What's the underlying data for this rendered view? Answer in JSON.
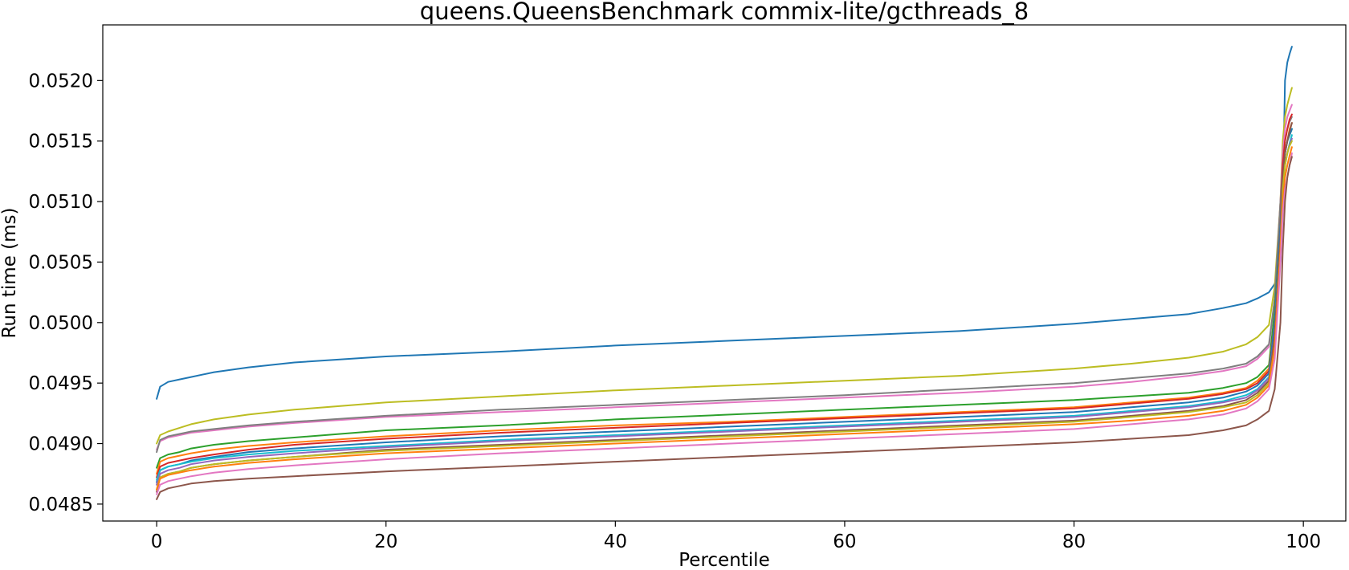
{
  "chart_data": {
    "type": "line",
    "title": "queens.QueensBenchmark commix-lite/gcthreads_8",
    "xlabel": "Percentile",
    "ylabel": "Run time (ms)",
    "xlim": [
      -4.7,
      103.7
    ],
    "ylim": [
      0.04836,
      0.05246
    ],
    "xticks": [
      0,
      20,
      40,
      60,
      80,
      100
    ],
    "yticks": [
      0.0485,
      0.049,
      0.0495,
      0.05,
      0.0505,
      0.051,
      0.0515,
      0.052
    ],
    "xtick_labels": [
      "0",
      "20",
      "40",
      "60",
      "80",
      "100"
    ],
    "ytick_labels": [
      "0.0485",
      "0.0490",
      "0.0495",
      "0.0500",
      "0.0505",
      "0.0510",
      "0.0515",
      "0.0520"
    ],
    "grid": false,
    "legend": "none",
    "x": [
      0,
      0.3,
      1,
      2,
      3,
      5,
      8,
      12,
      20,
      30,
      40,
      50,
      60,
      70,
      80,
      85,
      90,
      93,
      95,
      96,
      97,
      97.5,
      98,
      98.2,
      98.4,
      98.6,
      98.8,
      99
    ],
    "series": [
      {
        "color": "#1f77b4",
        "values": [
          0.04937,
          0.04947,
          0.04951,
          0.04953,
          0.04955,
          0.04959,
          0.04963,
          0.04967,
          0.04972,
          0.04976,
          0.04981,
          0.04985,
          0.04989,
          0.04993,
          0.04999,
          0.05003,
          0.05007,
          0.05012,
          0.05016,
          0.0502,
          0.05025,
          0.05032,
          0.0505,
          0.051,
          0.052,
          0.05215,
          0.05222,
          0.05228
        ]
      },
      {
        "color": "#bcbd22",
        "values": [
          0.049,
          0.04907,
          0.0491,
          0.04913,
          0.04916,
          0.0492,
          0.04924,
          0.04928,
          0.04934,
          0.04939,
          0.04944,
          0.04948,
          0.04952,
          0.04956,
          0.04962,
          0.04966,
          0.04971,
          0.04976,
          0.04982,
          0.04988,
          0.04998,
          0.0503,
          0.051,
          0.0515,
          0.0517,
          0.0518,
          0.05187,
          0.05194
        ]
      },
      {
        "color": "#e377c2",
        "values": [
          0.04895,
          0.04902,
          0.04905,
          0.04907,
          0.04909,
          0.04911,
          0.04914,
          0.04917,
          0.04922,
          0.04926,
          0.0493,
          0.04934,
          0.04938,
          0.04942,
          0.04947,
          0.04951,
          0.04956,
          0.0496,
          0.04964,
          0.0497,
          0.0498,
          0.0502,
          0.051,
          0.0514,
          0.0516,
          0.0517,
          0.05175,
          0.0518
        ]
      },
      {
        "color": "#7f7f7f",
        "values": [
          0.04893,
          0.04903,
          0.04906,
          0.04908,
          0.0491,
          0.04912,
          0.04915,
          0.04918,
          0.04923,
          0.04928,
          0.04932,
          0.04936,
          0.0494,
          0.04945,
          0.0495,
          0.04954,
          0.04958,
          0.04962,
          0.04966,
          0.04972,
          0.04982,
          0.0502,
          0.051,
          0.0513,
          0.0515,
          0.0516,
          0.05166,
          0.0517
        ]
      },
      {
        "color": "#2ca02c",
        "values": [
          0.0488,
          0.04888,
          0.04891,
          0.04893,
          0.04896,
          0.04899,
          0.04902,
          0.04905,
          0.04911,
          0.04915,
          0.0492,
          0.04924,
          0.04928,
          0.04932,
          0.04936,
          0.04939,
          0.04942,
          0.04946,
          0.0495,
          0.04955,
          0.04965,
          0.0501,
          0.0508,
          0.0512,
          0.0514,
          0.0515,
          0.05155,
          0.0516
        ]
      },
      {
        "color": "#ff7f0e",
        "values": [
          0.04875,
          0.04885,
          0.04888,
          0.0489,
          0.04892,
          0.04895,
          0.04898,
          0.04901,
          0.04906,
          0.04911,
          0.04915,
          0.04918,
          0.04922,
          0.04926,
          0.0493,
          0.04934,
          0.04938,
          0.04942,
          0.04946,
          0.04952,
          0.04962,
          0.05,
          0.0508,
          0.0512,
          0.0514,
          0.0515,
          0.0516,
          0.05165
        ]
      },
      {
        "color": "#d62728",
        "values": [
          0.04872,
          0.04881,
          0.04884,
          0.04886,
          0.04888,
          0.04891,
          0.04895,
          0.04899,
          0.04904,
          0.04909,
          0.04913,
          0.04917,
          0.04921,
          0.04925,
          0.04929,
          0.04933,
          0.04937,
          0.04941,
          0.04945,
          0.0495,
          0.0496,
          0.05,
          0.0508,
          0.0513,
          0.0515,
          0.0516,
          0.05168,
          0.05172
        ]
      },
      {
        "color": "#1f77b4",
        "values": [
          0.04868,
          0.04878,
          0.04881,
          0.04883,
          0.04886,
          0.04889,
          0.04893,
          0.04896,
          0.04901,
          0.04906,
          0.0491,
          0.04914,
          0.04918,
          0.04922,
          0.04926,
          0.0493,
          0.04934,
          0.04938,
          0.04943,
          0.04948,
          0.04958,
          0.05,
          0.0508,
          0.0512,
          0.0514,
          0.0515,
          0.05155,
          0.0516
        ]
      },
      {
        "color": "#17becf",
        "values": [
          0.0487,
          0.04878,
          0.04881,
          0.04883,
          0.04885,
          0.04888,
          0.04891,
          0.04894,
          0.04898,
          0.04903,
          0.04907,
          0.04911,
          0.04915,
          0.04919,
          0.04923,
          0.04927,
          0.04931,
          0.04935,
          0.0494,
          0.04945,
          0.04955,
          0.0499,
          0.0507,
          0.0511,
          0.0513,
          0.0514,
          0.05148,
          0.05155
        ]
      },
      {
        "color": "#9467bd",
        "values": [
          0.04866,
          0.04875,
          0.04878,
          0.0488,
          0.04883,
          0.04886,
          0.04889,
          0.04892,
          0.04897,
          0.04902,
          0.04906,
          0.0491,
          0.04914,
          0.04918,
          0.04922,
          0.04926,
          0.0493,
          0.04934,
          0.04938,
          0.04944,
          0.04954,
          0.0499,
          0.0507,
          0.0511,
          0.0513,
          0.0514,
          0.05147,
          0.05152
        ]
      },
      {
        "color": "#8c564b",
        "values": [
          0.0486,
          0.04872,
          0.04875,
          0.04877,
          0.0488,
          0.04883,
          0.04886,
          0.04889,
          0.04895,
          0.04899,
          0.04903,
          0.04907,
          0.04911,
          0.04915,
          0.04919,
          0.04923,
          0.04927,
          0.04931,
          0.04936,
          0.04942,
          0.04952,
          0.0499,
          0.0507,
          0.0512,
          0.0514,
          0.0515,
          0.05158,
          0.05165
        ]
      },
      {
        "color": "#bcbd22",
        "values": [
          0.04862,
          0.04872,
          0.04875,
          0.04877,
          0.0488,
          0.04883,
          0.04886,
          0.04889,
          0.04894,
          0.04898,
          0.04902,
          0.04906,
          0.0491,
          0.04914,
          0.04918,
          0.04922,
          0.04926,
          0.0493,
          0.04934,
          0.0494,
          0.0495,
          0.0498,
          0.0506,
          0.0511,
          0.0513,
          0.0514,
          0.05146,
          0.0515
        ]
      },
      {
        "color": "#ff7f0e",
        "values": [
          0.04862,
          0.04871,
          0.04874,
          0.04876,
          0.04878,
          0.04881,
          0.04884,
          0.04887,
          0.04892,
          0.04896,
          0.049,
          0.04904,
          0.04908,
          0.04912,
          0.04916,
          0.04919,
          0.04923,
          0.04927,
          0.04932,
          0.04938,
          0.04948,
          0.0498,
          0.0506,
          0.051,
          0.0512,
          0.0513,
          0.05138,
          0.05145
        ]
      },
      {
        "color": "#e377c2",
        "values": [
          0.04858,
          0.04866,
          0.04869,
          0.04871,
          0.04873,
          0.04876,
          0.04879,
          0.04882,
          0.04887,
          0.04892,
          0.04896,
          0.049,
          0.04904,
          0.04908,
          0.04912,
          0.04916,
          0.0492,
          0.04924,
          0.04929,
          0.04935,
          0.04945,
          0.0497,
          0.0505,
          0.0509,
          0.0511,
          0.0512,
          0.0513,
          0.0514
        ]
      },
      {
        "color": "#8c564b",
        "values": [
          0.04854,
          0.0486,
          0.04863,
          0.04865,
          0.04867,
          0.04869,
          0.04871,
          0.04873,
          0.04877,
          0.04881,
          0.04885,
          0.04889,
          0.04893,
          0.04897,
          0.04901,
          0.04904,
          0.04907,
          0.04911,
          0.04915,
          0.0492,
          0.04927,
          0.04945,
          0.05,
          0.0506,
          0.051,
          0.0512,
          0.0513,
          0.05137
        ]
      }
    ]
  }
}
